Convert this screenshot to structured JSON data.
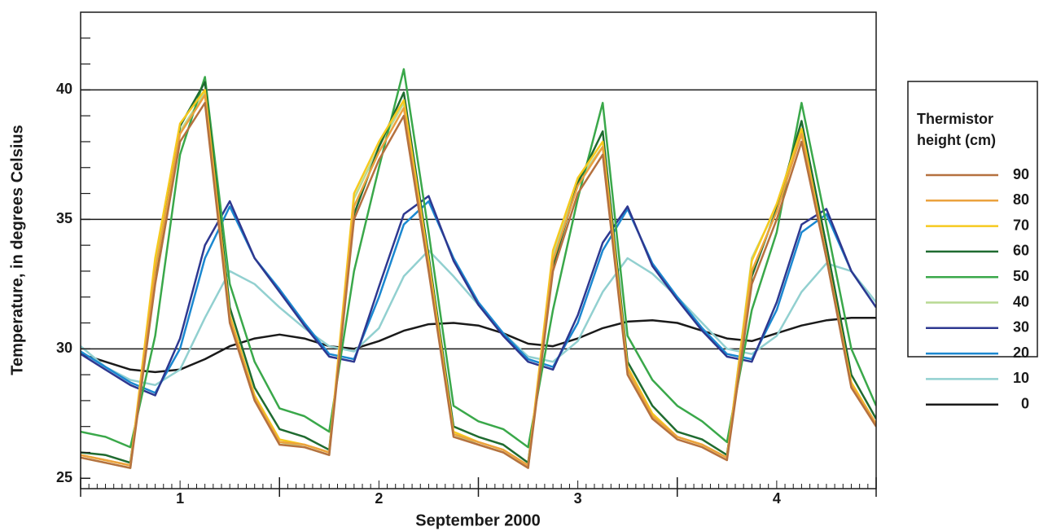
{
  "chart_data": {
    "type": "line",
    "x_label": "September 2000",
    "y_label": "Temperature, in degrees Celsius",
    "legend_title": "Thermistor height (cm)",
    "legend_position": "right",
    "grid": true,
    "x": [
      0,
      0.125,
      0.25,
      0.375,
      0.5,
      0.625,
      0.75,
      0.875,
      1,
      1.125,
      1.25,
      1.375,
      1.5,
      1.625,
      1.75,
      1.875,
      2,
      2.125,
      2.25,
      2.375,
      2.5,
      2.625,
      2.75,
      2.875,
      3,
      3.125,
      3.25,
      3.375,
      3.5,
      3.625,
      3.75,
      3.875,
      4
    ],
    "xlim": [
      0,
      4
    ],
    "xticks": [
      {
        "value": 0.5,
        "label": "1"
      },
      {
        "value": 1.5,
        "label": "2"
      },
      {
        "value": 2.5,
        "label": "3"
      },
      {
        "value": 3.5,
        "label": "4"
      }
    ],
    "x_major_ticks": [
      0,
      1,
      2,
      3,
      4
    ],
    "x_minor_ticks_per_day": 24,
    "ylim": [
      24.6,
      43
    ],
    "yticks": [
      25,
      30,
      35,
      40
    ],
    "y_minor_ticks": [
      26,
      27,
      28,
      29,
      31,
      32,
      33,
      34,
      36,
      37,
      38,
      39,
      41,
      42
    ],
    "series": [
      {
        "name": "90",
        "color": "#b5713f",
        "values": [
          25.8,
          25.6,
          25.4,
          32.5,
          38.0,
          39.5,
          31.0,
          28.0,
          26.3,
          26.2,
          25.9,
          35.0,
          37.3,
          39.0,
          33.0,
          26.6,
          26.3,
          26.0,
          25.4,
          33.0,
          36.0,
          37.5,
          29.0,
          27.3,
          26.5,
          26.2,
          25.7,
          32.5,
          35.0,
          38.0,
          33.5,
          28.5,
          27.0
        ]
      },
      {
        "name": "80",
        "color": "#eba23e",
        "values": [
          25.9,
          25.7,
          25.5,
          33.0,
          38.3,
          39.8,
          31.2,
          28.1,
          26.4,
          26.3,
          26.0,
          35.5,
          37.6,
          39.3,
          33.2,
          26.7,
          26.4,
          26.1,
          25.5,
          33.4,
          36.3,
          37.8,
          29.2,
          27.4,
          26.6,
          26.3,
          25.8,
          33.0,
          35.3,
          38.3,
          33.6,
          28.6,
          27.1
        ]
      },
      {
        "name": "70",
        "color": "#f6c91e",
        "values": [
          25.9,
          25.7,
          25.5,
          33.5,
          38.7,
          40.0,
          31.3,
          28.2,
          26.5,
          26.3,
          26.0,
          36.0,
          38.0,
          39.6,
          33.4,
          26.8,
          26.4,
          26.1,
          25.5,
          33.8,
          36.6,
          38.0,
          29.3,
          27.5,
          26.6,
          26.3,
          25.8,
          33.4,
          35.6,
          38.5,
          33.6,
          28.7,
          27.1
        ]
      },
      {
        "name": "60",
        "color": "#1f6b30",
        "values": [
          26.0,
          25.9,
          25.6,
          32.8,
          38.6,
          40.3,
          31.6,
          28.5,
          26.9,
          26.6,
          26.1,
          35.2,
          37.8,
          39.9,
          33.6,
          27.0,
          26.6,
          26.3,
          25.6,
          33.2,
          36.4,
          38.4,
          29.5,
          27.8,
          26.8,
          26.5,
          25.9,
          32.8,
          35.4,
          38.8,
          34.0,
          29.0,
          27.3
        ]
      },
      {
        "name": "50",
        "color": "#3aa84a",
        "values": [
          26.8,
          26.6,
          26.2,
          30.5,
          37.5,
          40.5,
          32.5,
          29.5,
          27.7,
          27.4,
          26.8,
          33.0,
          37.0,
          40.8,
          34.5,
          27.8,
          27.2,
          26.9,
          26.2,
          31.5,
          35.8,
          39.5,
          30.5,
          28.8,
          27.8,
          27.2,
          26.4,
          31.5,
          34.5,
          39.5,
          34.8,
          30.0,
          27.8
        ]
      },
      {
        "name": "40",
        "color": "#b9d993",
        "values": [
          25.8,
          25.6,
          25.4,
          33.2,
          38.4,
          39.9,
          31.1,
          28.1,
          26.4,
          26.2,
          25.9,
          35.8,
          37.8,
          39.5,
          33.2,
          26.7,
          26.3,
          26.0,
          25.4,
          33.6,
          36.5,
          37.8,
          29.1,
          27.4,
          26.6,
          26.3,
          25.8,
          33.5,
          35.5,
          38.3,
          33.5,
          28.6,
          27.0
        ]
      },
      {
        "name": "30",
        "color": "#2e3890",
        "values": [
          29.8,
          29.2,
          28.6,
          28.2,
          30.4,
          34.0,
          35.7,
          33.5,
          32.2,
          30.9,
          29.7,
          29.5,
          32.4,
          35.2,
          35.9,
          33.4,
          31.7,
          30.5,
          29.5,
          29.2,
          31.3,
          34.1,
          35.5,
          33.2,
          31.9,
          30.7,
          29.7,
          29.5,
          31.8,
          34.8,
          35.4,
          33.0,
          31.6
        ]
      },
      {
        "name": "20",
        "color": "#1b88d0",
        "values": [
          29.9,
          29.3,
          28.7,
          28.3,
          30.0,
          33.5,
          35.5,
          33.5,
          32.3,
          31.0,
          29.8,
          29.6,
          32.0,
          34.8,
          35.7,
          33.5,
          31.8,
          30.6,
          29.6,
          29.3,
          31.0,
          33.8,
          35.4,
          33.3,
          32.0,
          30.8,
          29.8,
          29.6,
          31.5,
          34.5,
          35.2,
          33.0,
          31.6
        ]
      },
      {
        "name": "10",
        "color": "#92d0d0",
        "values": [
          30.1,
          29.3,
          28.8,
          28.6,
          29.2,
          31.2,
          33.0,
          32.5,
          31.6,
          30.8,
          30.1,
          29.9,
          30.8,
          32.8,
          33.8,
          32.8,
          31.7,
          30.6,
          29.7,
          29.5,
          30.3,
          32.2,
          33.5,
          32.9,
          32.0,
          31.0,
          30.0,
          29.8,
          30.5,
          32.2,
          33.3,
          33.0,
          31.8
        ]
      },
      {
        "name": "0",
        "color": "#1a1a1a",
        "values": [
          29.8,
          29.5,
          29.2,
          29.1,
          29.2,
          29.6,
          30.1,
          30.4,
          30.55,
          30.4,
          30.1,
          30.0,
          30.3,
          30.7,
          30.95,
          31.0,
          30.9,
          30.6,
          30.2,
          30.1,
          30.4,
          30.8,
          31.05,
          31.1,
          31.0,
          30.7,
          30.4,
          30.3,
          30.6,
          30.9,
          31.1,
          31.2,
          31.2
        ]
      }
    ]
  }
}
